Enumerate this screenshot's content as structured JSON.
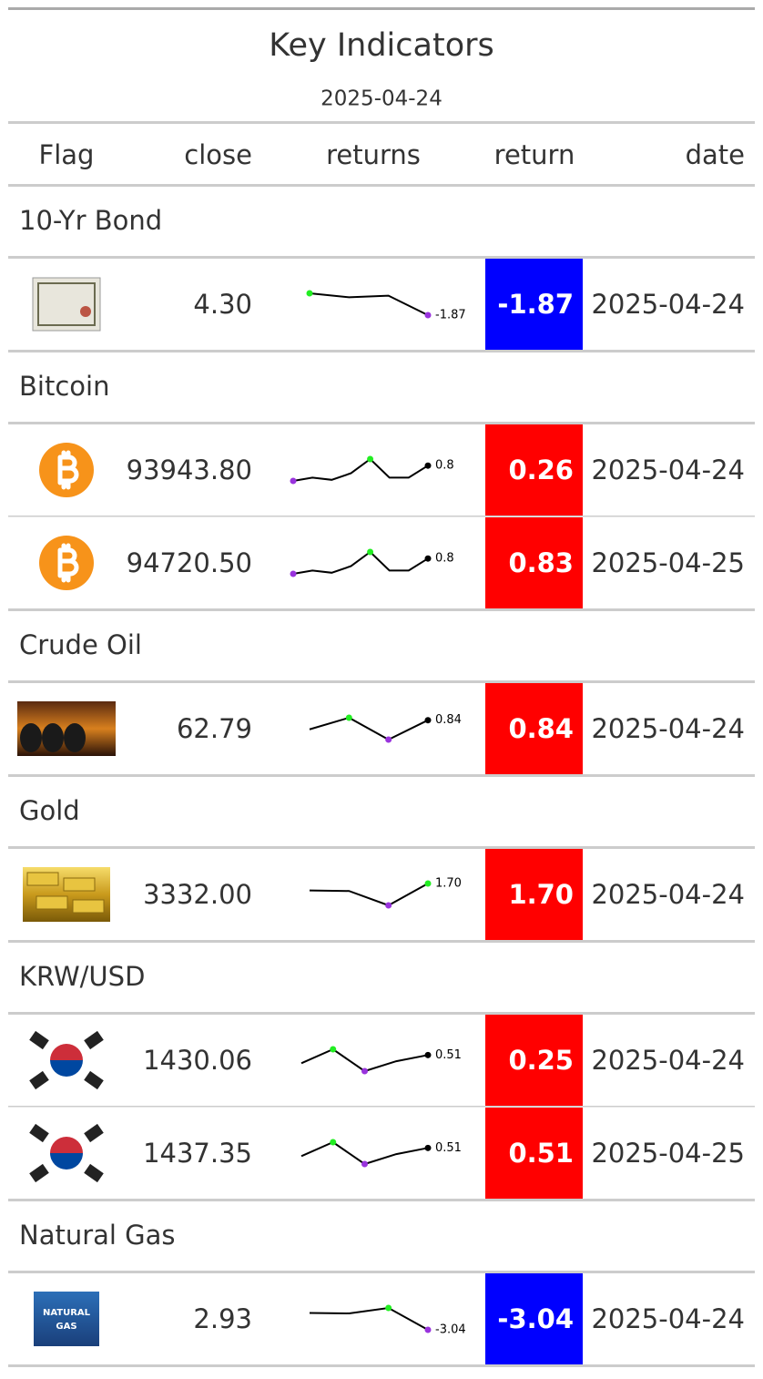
{
  "header": {
    "title": "Key Indicators",
    "subtitle": "2025-04-24"
  },
  "columns": [
    "Flag",
    "close",
    "returns",
    "return",
    "date"
  ],
  "groups": [
    {
      "name": "10-Yr Bond",
      "rows": [
        {
          "close": "4.30",
          "returns": {
            "values": [
              0.9,
              0.4,
              0.6,
              -1.87
            ],
            "label": "-1.87"
          },
          "return": "-1.87",
          "return_color": "#0000ff",
          "date": "2025-04-24"
        }
      ]
    },
    {
      "name": "Bitcoin",
      "rows": [
        {
          "close": "93943.80",
          "returns": {
            "values": [
              -0.6,
              -0.3,
              -0.5,
              0.1,
              1.4,
              -0.3,
              -0.3,
              0.8
            ],
            "label": "0.8"
          },
          "return": "0.26",
          "return_color": "#ff0000",
          "date": "2025-04-24"
        },
        {
          "close": "94720.50",
          "returns": {
            "values": [
              -0.6,
              -0.3,
              -0.5,
              0.1,
              1.4,
              -0.3,
              -0.3,
              0.8
            ],
            "label": "0.8"
          },
          "return": "0.83",
          "return_color": "#ff0000",
          "date": "2025-04-25"
        }
      ]
    },
    {
      "name": "Crude Oil",
      "rows": [
        {
          "close": "62.79",
          "returns": {
            "values": [
              -0.5,
              1.2,
              -2.0,
              0.84
            ],
            "label": "0.84"
          },
          "return": "0.84",
          "return_color": "#ff0000",
          "date": "2025-04-24"
        }
      ]
    },
    {
      "name": "Gold",
      "rows": [
        {
          "close": "3332.00",
          "returns": {
            "values": [
              0.5,
              0.4,
              -2.1,
              1.7
            ],
            "label": "1.70"
          },
          "return": "1.70",
          "return_color": "#ff0000",
          "date": "2025-04-24"
        }
      ]
    },
    {
      "name": "KRW/USD",
      "rows": [
        {
          "close": "1430.06",
          "returns": {
            "values": [
              0.1,
              0.8,
              -0.3,
              0.2,
              0.51
            ],
            "label": "0.51"
          },
          "return": "0.25",
          "return_color": "#ff0000",
          "date": "2025-04-24"
        },
        {
          "close": "1437.35",
          "returns": {
            "values": [
              0.1,
              0.8,
              -0.3,
              0.2,
              0.51
            ],
            "label": "0.51"
          },
          "return": "0.51",
          "return_color": "#ff0000",
          "date": "2025-04-25"
        }
      ]
    },
    {
      "name": "Natural Gas",
      "image_text": [
        "NATURAL",
        "GAS"
      ],
      "rows": [
        {
          "close": "2.93",
          "returns": {
            "values": [
              1.0,
              0.9,
              2.2,
              -3.04
            ],
            "label": "-3.04"
          },
          "return": "-3.04",
          "return_color": "#0000ff",
          "date": "2025-04-24"
        }
      ]
    }
  ]
}
